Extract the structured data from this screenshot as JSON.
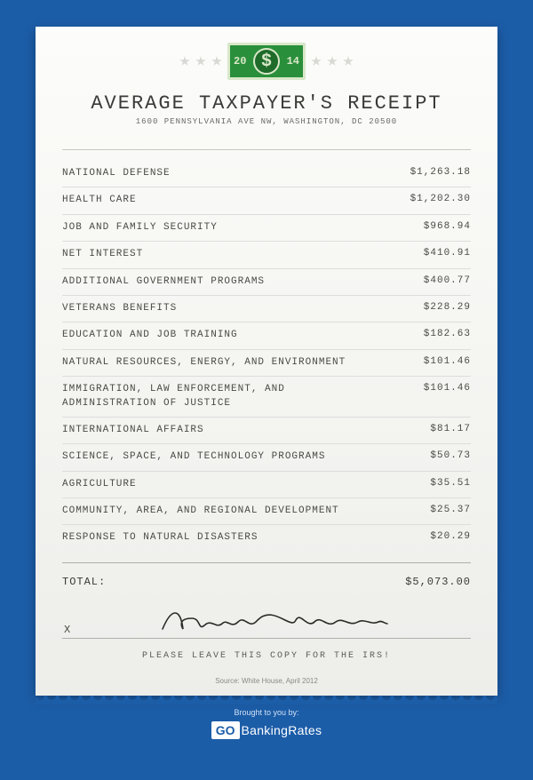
{
  "bill": {
    "year_left": "20",
    "year_right": "14",
    "seal": "$"
  },
  "title": "AVERAGE TAXPAYER'S RECEIPT",
  "address": "1600 PENNSYLVANIA AVE NW, WASHINGTON, DC 20500",
  "items": [
    {
      "label": "NATIONAL DEFENSE",
      "amount": "$1,263.18"
    },
    {
      "label": "HEALTH CARE",
      "amount": "$1,202.30"
    },
    {
      "label": "JOB AND FAMILY SECURITY",
      "amount": "$968.94"
    },
    {
      "label": "NET INTEREST",
      "amount": "$410.91"
    },
    {
      "label": "ADDITIONAL GOVERNMENT PROGRAMS",
      "amount": "$400.77"
    },
    {
      "label": "VETERANS BENEFITS",
      "amount": "$228.29"
    },
    {
      "label": "EDUCATION AND JOB TRAINING",
      "amount": "$182.63"
    },
    {
      "label": "NATURAL RESOURCES, ENERGY, AND ENVIRONMENT",
      "amount": "$101.46"
    },
    {
      "label": "IMMIGRATION, LAW ENFORCEMENT, AND ADMINISTRATION OF JUSTICE",
      "amount": "$101.46"
    },
    {
      "label": "INTERNATIONAL AFFAIRS",
      "amount": "$81.17"
    },
    {
      "label": "SCIENCE, SPACE, AND TECHNOLOGY PROGRAMS",
      "amount": "$50.73"
    },
    {
      "label": "AGRICULTURE",
      "amount": "$35.51"
    },
    {
      "label": "COMMUNITY, AREA, AND REGIONAL DEVELOPMENT",
      "amount": "$25.37"
    },
    {
      "label": "RESPONSE TO NATURAL DISASTERS",
      "amount": "$20.29"
    }
  ],
  "total_label": "TOTAL:",
  "total_amount": "$5,073.00",
  "sig_x": "X",
  "signature_name": "Mary Smith",
  "leave_copy": "PLEASE LEAVE THIS COPY FOR THE IRS!",
  "source": "Source: White House, April 2012",
  "brought_label": "Brought to you by:",
  "brand_go": "GO",
  "brand_rest": "BankingRates",
  "colors": {
    "background": "#1c5da8",
    "receipt_bg": "#f5f5f2",
    "text": "#4a4a46",
    "bill_green": "#2a8f3b",
    "star": "#d8d8d4"
  }
}
